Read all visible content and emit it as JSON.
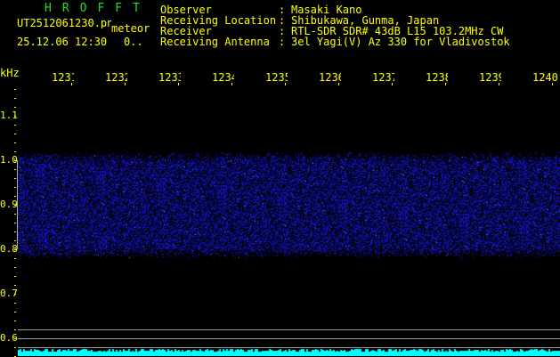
{
  "header": {
    "title": "HROFFT",
    "filename": "UT2512061230.png",
    "mode": "meteor",
    "datetime": "25.12.06 12:30",
    "counter": "0..",
    "info": [
      {
        "label": "Observer",
        "value": "Masaki Kano"
      },
      {
        "label": "Receiving Location",
        "value": "Shibukawa, Gunma, Japan"
      },
      {
        "label": "Receiver",
        "value": "RTL-SDR SDR# 43dB L15 103.2MHz CW"
      },
      {
        "label": "Receiving Antenna",
        "value": "3el Yagi(V) Az 330 for Vladivostok"
      }
    ]
  },
  "axis": {
    "unit": "kHz",
    "x_labels": [
      "1231",
      "1232",
      "1233",
      "1234",
      "1235",
      "1236",
      "1237",
      "1238",
      "1239",
      "1240"
    ],
    "y_labels": [
      "1.1",
      "1.0",
      "0.9",
      "0.8",
      "0.7",
      "0.6"
    ]
  },
  "colors": {
    "text": "#ffff00",
    "title": "#22dd22",
    "noise": "#1a1aff",
    "spectrum": "#00ffff",
    "lines": "#999999"
  }
}
